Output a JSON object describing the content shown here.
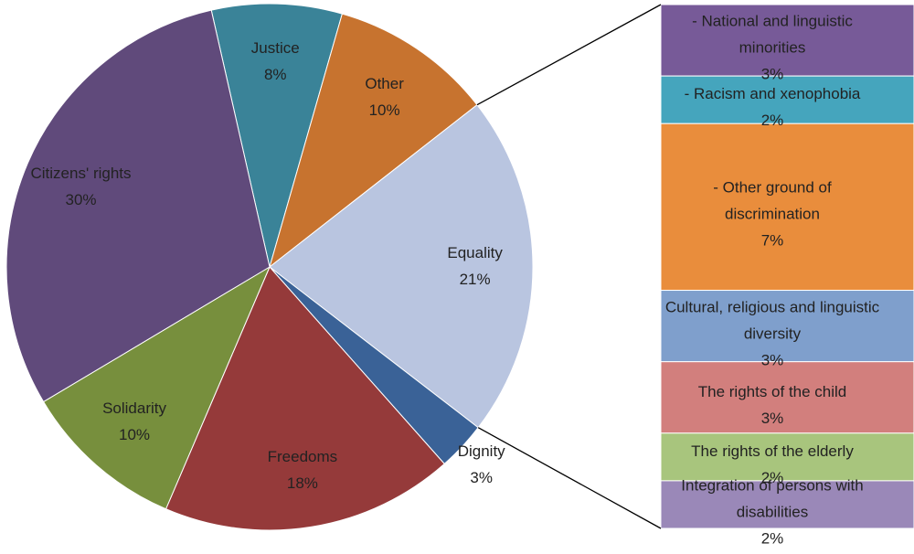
{
  "chart_data": [
    {
      "type": "pie",
      "categories": [
        "Justice",
        "Other",
        "Equality",
        "Dignity",
        "Freedoms",
        "Solidarity",
        "Citizens' rights"
      ],
      "values": [
        8,
        10,
        21,
        3,
        18,
        10,
        30
      ],
      "value_labels": [
        "8%",
        "10%",
        "21%",
        "3%",
        "18%",
        "10%",
        "30%"
      ],
      "colors": [
        "#3a8398",
        "#c7732f",
        "#b9c5e0",
        "#3a6297",
        "#953a3a",
        "#778f3d",
        "#604a7b"
      ]
    },
    {
      "type": "bar",
      "categories": [
        "- National and linguistic minorities",
        "- Racism and xenophobia",
        "- Other ground of discrimination",
        "Cultural, religious and linguistic diversity",
        "The rights of the child",
        "The rights of the elderly",
        "Integration of persons with disabilities"
      ],
      "values": [
        3,
        2,
        7,
        3,
        3,
        2,
        2
      ],
      "value_labels": [
        "3%",
        "2%",
        "7%",
        "3%",
        "3%",
        "2%",
        "2%"
      ],
      "colors": [
        "#775a98",
        "#45a5bd",
        "#e98d3c",
        "#7f9fcc",
        "#d27f7d",
        "#a8c57d",
        "#9a88b8"
      ]
    }
  ]
}
